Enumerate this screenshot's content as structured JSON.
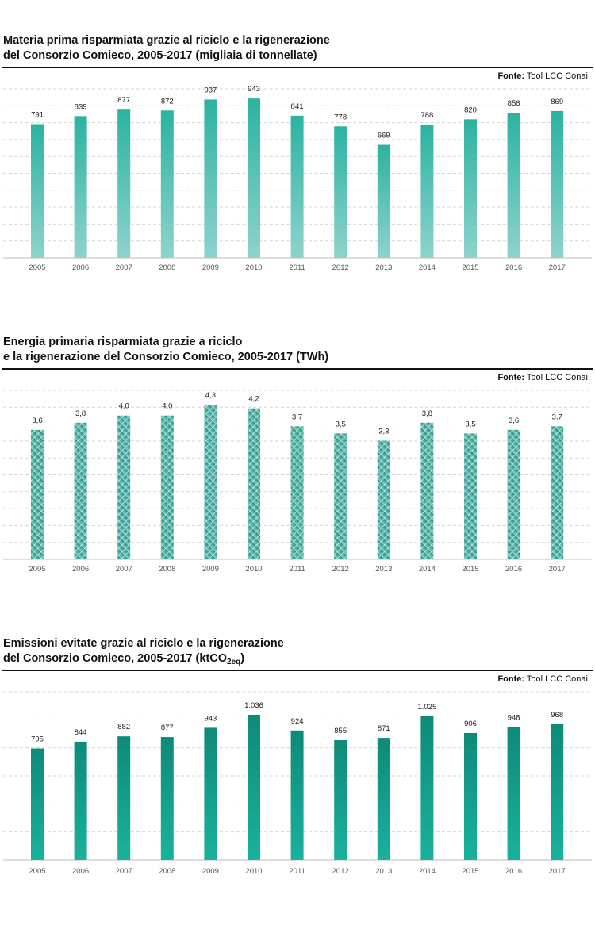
{
  "chart_data": [
    {
      "type": "bar",
      "title": "Materia prima risparmiata grazie al riciclo e la rigenerazione del Consorzio Comieco, 2005-2017 (migliaia di tonnellate)",
      "title_line1": "Materia prima risparmiata grazie al riciclo e la rigenerazione",
      "title_line2": "del Consorzio Comieco, 2005-2017 (migliaia di tonnellate)",
      "source_label": "Fonte:",
      "source_text": "Tool LCC Conai.",
      "categories": [
        "2005",
        "2006",
        "2007",
        "2008",
        "2009",
        "2010",
        "2011",
        "2012",
        "2013",
        "2014",
        "2015",
        "2016",
        "2017"
      ],
      "values": [
        791,
        839,
        877,
        872,
        937,
        943,
        841,
        778,
        669,
        788,
        820,
        858,
        869
      ],
      "value_labels": [
        "791",
        "839",
        "877",
        "872",
        "937",
        "943",
        "841",
        "778",
        "669",
        "788",
        "820",
        "858",
        "869"
      ],
      "ylim": [
        0,
        1000
      ],
      "grid": true,
      "fill": "gradient",
      "color_top": "#2bb3a0",
      "color_bottom": "#8ed3cb"
    },
    {
      "type": "bar",
      "title": "Energia primaria risparmiata grazie a riciclo e la rigenerazione del Consorzio Comieco, 2005-2017 (TWh)",
      "title_line1": "Energia primaria risparmiata grazie a riciclo",
      "title_line2": "e la rigenerazione del Consorzio Comieco, 2005-2017 (TWh)",
      "source_label": "Fonte:",
      "source_text": "Tool LCC Conai.",
      "categories": [
        "2005",
        "2006",
        "2007",
        "2008",
        "2009",
        "2010",
        "2011",
        "2012",
        "2013",
        "2014",
        "2015",
        "2016",
        "2017"
      ],
      "values": [
        3.6,
        3.8,
        4.0,
        4.0,
        4.3,
        4.2,
        3.7,
        3.5,
        3.3,
        3.8,
        3.5,
        3.6,
        3.7
      ],
      "value_labels": [
        "3,6",
        "3,8",
        "4,0",
        "4,0",
        "4,3",
        "4,2",
        "3,7",
        "3,5",
        "3,3",
        "3,8",
        "3,5",
        "3,6",
        "3,7"
      ],
      "ylim": [
        0,
        4.7
      ],
      "grid": true,
      "fill": "hatched",
      "color_top": "#1f8f80",
      "color_bottom": "#8ed3cb"
    },
    {
      "type": "bar",
      "title": "Emissioni evitate grazie al riciclo e la rigenerazione del Consorzio Comieco, 2005-2017 (ktCO2eq)",
      "title_line1": "Emissioni evitate grazie al riciclo e la rigenerazione",
      "title_line2_pre": "del Consorzio Comieco, 2005-2017 (ktCO",
      "title_line2_sub": "2eq",
      "title_line2_post": ")",
      "source_label": "Fonte:",
      "source_text": "Tool LCC Conai.",
      "categories": [
        "2005",
        "2006",
        "2007",
        "2008",
        "2009",
        "2010",
        "2011",
        "2012",
        "2013",
        "2014",
        "2015",
        "2016",
        "2017"
      ],
      "values": [
        795,
        844,
        882,
        877,
        943,
        1036,
        924,
        855,
        871,
        1025,
        906,
        948,
        968
      ],
      "value_labels": [
        "795",
        "844",
        "882",
        "877",
        "943",
        "1.036",
        "924",
        "855",
        "871",
        "1.025",
        "906",
        "948",
        "968"
      ],
      "ylim": [
        0,
        1200
      ],
      "grid": true,
      "fill": "gradient",
      "color_top": "#0e8a78",
      "color_bottom": "#19b29c"
    }
  ]
}
